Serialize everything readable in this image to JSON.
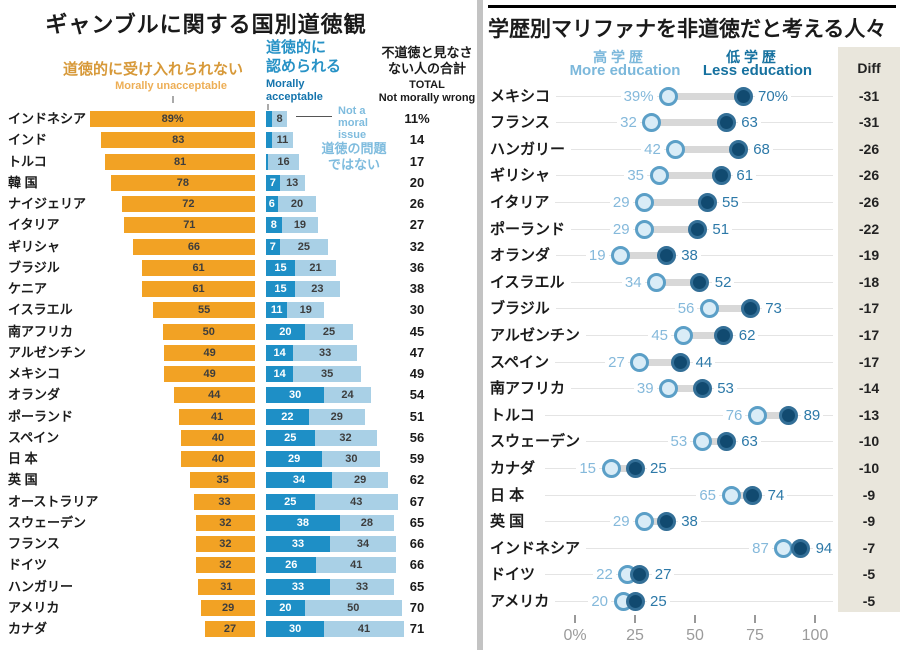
{
  "chart_data": [
    {
      "type": "bar",
      "title": "ギャンブルに関する国別道徳観",
      "legend": {
        "unacceptable_jp": "道徳的に受け入れられない",
        "unacceptable_en": "Morally unacceptable",
        "acceptable_jp": "道徳的に\n認められる",
        "acceptable_en": "Morally\nacceptable",
        "not_moral_en": "Not a\nmoral\nissue",
        "not_moral_jp": "道徳の問題\nではない",
        "total_jp": "不道徳と見なさ\nない人の合計",
        "total_en1": "TOTAL",
        "total_en2": "Not morally wrong"
      },
      "categories": [
        "インドネシア",
        "インド",
        "トルコ",
        "韓 国",
        "ナイジェリア",
        "イタリア",
        "ギリシャ",
        "ブラジル",
        "ケニア",
        "イスラエル",
        "南アフリカ",
        "アルゼンチン",
        "メキシコ",
        "オランダ",
        "ポーランド",
        "スペイン",
        "日 本",
        "英 国",
        "オーストラリア",
        "スウェーデン",
        "フランス",
        "ドイツ",
        "ハンガリー",
        "アメリカ",
        "カナダ"
      ],
      "series": [
        {
          "name": "道徳的に受け入れられない Morally unacceptable",
          "values": [
            89,
            83,
            81,
            78,
            72,
            71,
            66,
            61,
            61,
            55,
            50,
            49,
            49,
            44,
            41,
            40,
            40,
            35,
            33,
            32,
            32,
            32,
            31,
            29,
            27
          ]
        },
        {
          "name": "道徳的に認められる Morally acceptable",
          "values": [
            3,
            3,
            1,
            7,
            6,
            8,
            7,
            15,
            15,
            11,
            20,
            14,
            14,
            30,
            22,
            25,
            29,
            34,
            25,
            38,
            33,
            26,
            33,
            20,
            30
          ]
        },
        {
          "name": "道徳の問題ではない Not a moral issue",
          "values": [
            8,
            11,
            16,
            13,
            20,
            19,
            25,
            21,
            23,
            19,
            25,
            33,
            35,
            24,
            29,
            32,
            30,
            29,
            43,
            28,
            34,
            41,
            33,
            50,
            41
          ]
        },
        {
          "name": "TOTAL Not morally wrong",
          "values": [
            11,
            14,
            17,
            20,
            26,
            27,
            32,
            36,
            38,
            30,
            45,
            47,
            49,
            54,
            51,
            56,
            59,
            62,
            67,
            65,
            66,
            66,
            65,
            70,
            71
          ]
        }
      ],
      "xlim": [
        0,
        100
      ],
      "first_row_suffix": "%"
    },
    {
      "type": "scatter",
      "subtype": "dumbbell",
      "title": "学歴別マリファナを非道徳だと考える人々",
      "legend": {
        "more_jp": "高 学 歴",
        "more_en": "More education",
        "less_jp": "低 学 歴",
        "less_en": "Less education",
        "diff": "Diff"
      },
      "categories": [
        "メキシコ",
        "フランス",
        "ハンガリー",
        "ギリシャ",
        "イタリア",
        "ポーランド",
        "オランダ",
        "イスラエル",
        "ブラジル",
        "アルゼンチン",
        "スペイン",
        "南アフリカ",
        "トルコ",
        "スウェーデン",
        "カナダ",
        "日 本",
        "英 国",
        "インドネシア",
        "ドイツ",
        "アメリカ"
      ],
      "series": [
        {
          "name": "高学歴 More education",
          "values": [
            39,
            32,
            42,
            35,
            29,
            29,
            19,
            34,
            56,
            45,
            27,
            39,
            76,
            53,
            15,
            65,
            29,
            87,
            22,
            20
          ]
        },
        {
          "name": "低学歴 Less education",
          "values": [
            70,
            63,
            68,
            61,
            55,
            51,
            38,
            52,
            73,
            62,
            44,
            53,
            89,
            63,
            25,
            74,
            38,
            94,
            27,
            25
          ]
        },
        {
          "name": "Diff",
          "values": [
            -31,
            -31,
            -26,
            -26,
            -26,
            -22,
            -19,
            -18,
            -17,
            -17,
            -17,
            -14,
            -13,
            -10,
            -10,
            -9,
            -9,
            -7,
            -5,
            -5
          ]
        }
      ],
      "x_ticks": [
        "0%",
        "25",
        "50",
        "75",
        "100"
      ],
      "x_tick_values": [
        0,
        25,
        50,
        75,
        100
      ],
      "xlim": [
        0,
        100
      ],
      "first_row_suffix": "%"
    }
  ],
  "colors": {
    "orange": "#F2A224",
    "orange_label_jp": "#D79939",
    "orange_label_en": "#EDAE55",
    "blue_dark": "#1E8FC6",
    "blue_light": "#A9D0E6",
    "blue_header": "#2792C6",
    "blue_header_en": "#1474AD",
    "blue_pale_label": "#7FBCDE",
    "navy_fill": "#114A70",
    "navy_ring": "#336F97",
    "circle_light_fill": "#D9ECF7",
    "circle_light_ring": "#5B9FC7",
    "value_light": "#85B9DB",
    "value_dark": "#2D79A8",
    "more_header": "#7CB8DB",
    "less_header": "#16719F",
    "connector": "#D8D8D8",
    "diff_bg": "#E9E6DC",
    "rule": "#E4E4E4",
    "divider": "#C3C3C3",
    "axis_text": "#9B9B9B",
    "bar_text": "#3D3D3D",
    "bar_text_light": "#FFFFFF",
    "text_black": "#1A1A1A"
  }
}
